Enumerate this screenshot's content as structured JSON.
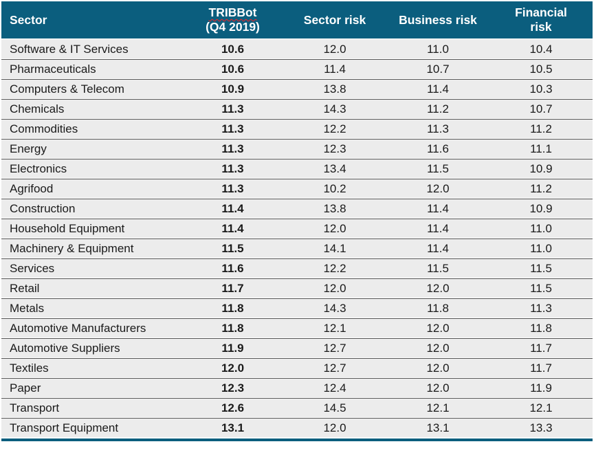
{
  "colors": {
    "header_bg": "#0b5e7e",
    "bottom_bar": "#0b5e7e",
    "row_bg": "#ececec",
    "separator_line": "#555555",
    "row_text": "#1a1a1a",
    "header_text": "#ffffff",
    "misspell_underline": "#ff1f1f",
    "page_bg": "#ffffff"
  },
  "chart_data": {
    "type": "table",
    "legend_position": "none",
    "grid": "horizontal-separators",
    "header": {
      "sector": "Sector",
      "tribbot_line1": "TRIBBot",
      "tribbot_line2": "(Q4 2019)",
      "sector_risk": "Sector risk",
      "business_risk": "Business risk",
      "financial_risk_line1": "Financial",
      "financial_risk_line2": "risk"
    },
    "rows": [
      {
        "sector": "Software & IT Services",
        "tribbot": "10.6",
        "sector_risk": "12.0",
        "business_risk": "11.0",
        "financial_risk": "10.4"
      },
      {
        "sector": "Pharmaceuticals",
        "tribbot": "10.6",
        "sector_risk": "11.4",
        "business_risk": "10.7",
        "financial_risk": "10.5"
      },
      {
        "sector": "Computers & Telecom",
        "tribbot": "10.9",
        "sector_risk": "13.8",
        "business_risk": "11.4",
        "financial_risk": "10.3"
      },
      {
        "sector": "Chemicals",
        "tribbot": "11.3",
        "sector_risk": "14.3",
        "business_risk": "11.2",
        "financial_risk": "10.7"
      },
      {
        "sector": "Commodities",
        "tribbot": "11.3",
        "sector_risk": "12.2",
        "business_risk": "11.3",
        "financial_risk": "11.2"
      },
      {
        "sector": "Energy",
        "tribbot": "11.3",
        "sector_risk": "12.3",
        "business_risk": "11.6",
        "financial_risk": "11.1"
      },
      {
        "sector": "Electronics",
        "tribbot": "11.3",
        "sector_risk": "13.4",
        "business_risk": "11.5",
        "financial_risk": "10.9"
      },
      {
        "sector": "Agrifood",
        "tribbot": "11.3",
        "sector_risk": "10.2",
        "business_risk": "12.0",
        "financial_risk": "11.2"
      },
      {
        "sector": "Construction",
        "tribbot": "11.4",
        "sector_risk": "13.8",
        "business_risk": "11.4",
        "financial_risk": "10.9"
      },
      {
        "sector": "Household Equipment",
        "tribbot": "11.4",
        "sector_risk": "12.0",
        "business_risk": "11.4",
        "financial_risk": "11.0"
      },
      {
        "sector": "Machinery & Equipment",
        "tribbot": "11.5",
        "sector_risk": "14.1",
        "business_risk": "11.4",
        "financial_risk": "11.0"
      },
      {
        "sector": "Services",
        "tribbot": "11.6",
        "sector_risk": "12.2",
        "business_risk": "11.5",
        "financial_risk": "11.5"
      },
      {
        "sector": "Retail",
        "tribbot": "11.7",
        "sector_risk": "12.0",
        "business_risk": "12.0",
        "financial_risk": "11.5"
      },
      {
        "sector": "Metals",
        "tribbot": "11.8",
        "sector_risk": "14.3",
        "business_risk": "11.8",
        "financial_risk": "11.3"
      },
      {
        "sector": "Automotive Manufacturers",
        "tribbot": "11.8",
        "sector_risk": "12.1",
        "business_risk": "12.0",
        "financial_risk": "11.8"
      },
      {
        "sector": "Automotive Suppliers",
        "tribbot": "11.9",
        "sector_risk": "12.7",
        "business_risk": "12.0",
        "financial_risk": "11.7"
      },
      {
        "sector": "Textiles",
        "tribbot": "12.0",
        "sector_risk": "12.7",
        "business_risk": "12.0",
        "financial_risk": "11.7"
      },
      {
        "sector": "Paper",
        "tribbot": "12.3",
        "sector_risk": "12.4",
        "business_risk": "12.0",
        "financial_risk": "11.9"
      },
      {
        "sector": "Transport",
        "tribbot": "12.6",
        "sector_risk": "14.5",
        "business_risk": "12.1",
        "financial_risk": "12.1"
      },
      {
        "sector": "Transport Equipment",
        "tribbot": "13.1",
        "sector_risk": "12.0",
        "business_risk": "13.1",
        "financial_risk": "13.3"
      }
    ]
  }
}
